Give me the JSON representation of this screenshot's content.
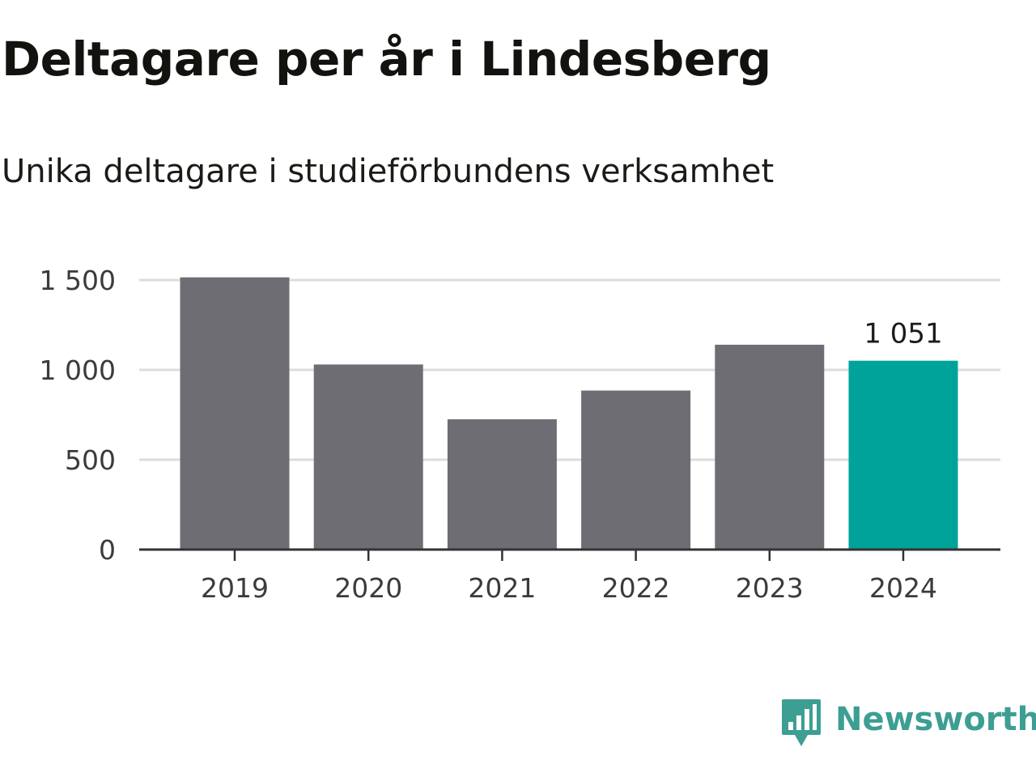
{
  "chart_data": {
    "type": "bar",
    "title": "Deltagare per år i Lindesberg",
    "subtitle": "Unika deltagare i studieförbundens verksamhet",
    "categories": [
      "2019",
      "2020",
      "2021",
      "2022",
      "2023",
      "2024"
    ],
    "values": [
      1515,
      1030,
      725,
      885,
      1140,
      1051
    ],
    "ylim": [
      0,
      1500
    ],
    "yticks": [
      {
        "value": 0,
        "label": "0"
      },
      {
        "value": 500,
        "label": "500"
      },
      {
        "value": 1000,
        "label": "1 000"
      },
      {
        "value": 1500,
        "label": "1 500"
      }
    ],
    "grid": true,
    "colors": {
      "default_bar": "#6e6d74",
      "highlight_bar": "#00a39a",
      "grid": "#dcdcdc",
      "axis": "#333333"
    },
    "highlight_index": 5,
    "data_labels": [
      {
        "index": 5,
        "text": "1 051"
      }
    ]
  },
  "logo": {
    "text": "Newsworthy",
    "icon": "newsworthy-logo-icon",
    "color": "#3d9e93"
  }
}
